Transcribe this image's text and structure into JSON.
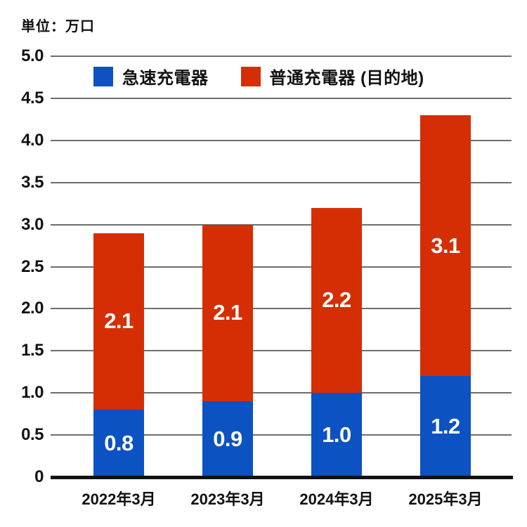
{
  "unit_label": "単位：万口",
  "colors": {
    "fast": "#0c52c2",
    "normal": "#d52e05",
    "grid": "#6e6e6e",
    "axis": "#111111",
    "value_text": "#ffffff",
    "text": "#111111"
  },
  "chart_data": {
    "type": "bar",
    "stacked": true,
    "title": "",
    "unit": "単位：万口",
    "categories": [
      "2022年3月",
      "2023年3月",
      "2024年3月",
      "2025年3月"
    ],
    "series": [
      {
        "name": "急速充電器",
        "color_key": "fast",
        "values": [
          0.8,
          0.9,
          1.0,
          1.2
        ]
      },
      {
        "name": "普通充電器 (目的地)",
        "color_key": "normal",
        "values": [
          2.1,
          2.1,
          2.2,
          3.1
        ]
      }
    ],
    "ylim": [
      0,
      5.0
    ],
    "ytick_step": 0.5,
    "yticks": [
      "0",
      "0.5",
      "1.0",
      "1.5",
      "2.0",
      "2.5",
      "3.0",
      "3.5",
      "4.0",
      "4.5",
      "5.0"
    ],
    "grid": true,
    "legend_position": "top-inside"
  }
}
